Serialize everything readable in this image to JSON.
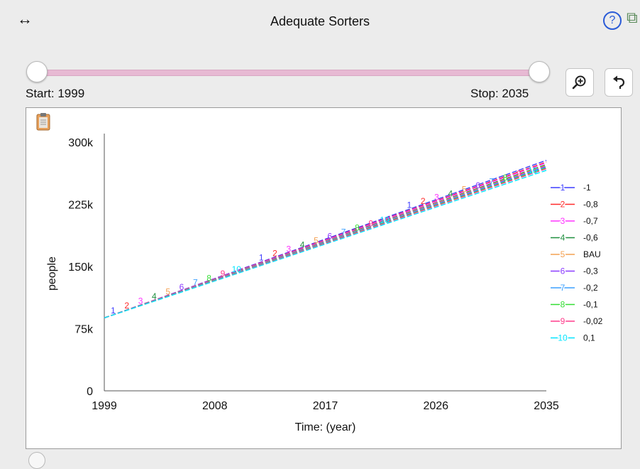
{
  "header": {
    "title": "Adequate Sorters",
    "resize_icon": "horizontal-resize-icon",
    "help_icon": "help-icon",
    "help_glyph": "?",
    "popout_icon": "popout-icon"
  },
  "slider": {
    "start_label": "Start: 1999",
    "stop_label": "Stop: 2035",
    "start_value": 1999,
    "stop_value": 2035,
    "track_color": "#e7b9d3"
  },
  "toolbar": {
    "zoom_icon": "zoom-in-icon",
    "reset_icon": "undo-icon"
  },
  "chart_data": {
    "type": "line",
    "title": "",
    "xlabel": "Time: (year)",
    "ylabel": "people",
    "xlim": [
      1999,
      2035
    ],
    "ylim": [
      0,
      300000
    ],
    "x_ticks": [
      1999,
      2008,
      2017,
      2026,
      2035
    ],
    "y_ticks": [
      0,
      75000,
      150000,
      225000,
      300000
    ],
    "y_tick_labels": [
      "0",
      "75k",
      "150k",
      "225k",
      "300k"
    ],
    "grid": false,
    "legend": "right",
    "start_year": 1999,
    "start_value": 88000,
    "series": [
      {
        "marker": "1",
        "name": "-1",
        "color": "#3b3bff",
        "end_value": 278000
      },
      {
        "marker": "2",
        "name": "-0,8",
        "color": "#ff2a2a",
        "end_value": 276000
      },
      {
        "marker": "3",
        "name": "-0,7",
        "color": "#ff33ff",
        "end_value": 275000
      },
      {
        "marker": "4",
        "name": "-0,6",
        "color": "#1f8f3f",
        "end_value": 273000
      },
      {
        "marker": "5",
        "name": "BAU",
        "color": "#f4a050",
        "end_value": 272000
      },
      {
        "marker": "6",
        "name": "-0,3",
        "color": "#8b3bff",
        "end_value": 271000
      },
      {
        "marker": "7",
        "name": "-0,2",
        "color": "#3ba0ff",
        "end_value": 270000
      },
      {
        "marker": "8",
        "name": "-0,1",
        "color": "#33dd33",
        "end_value": 269000
      },
      {
        "marker": "9",
        "name": "-0,02",
        "color": "#ff3b8b",
        "end_value": 268000
      },
      {
        "marker": "10",
        "name": "0,1",
        "color": "#00e5ff",
        "end_value": 266000
      }
    ]
  }
}
